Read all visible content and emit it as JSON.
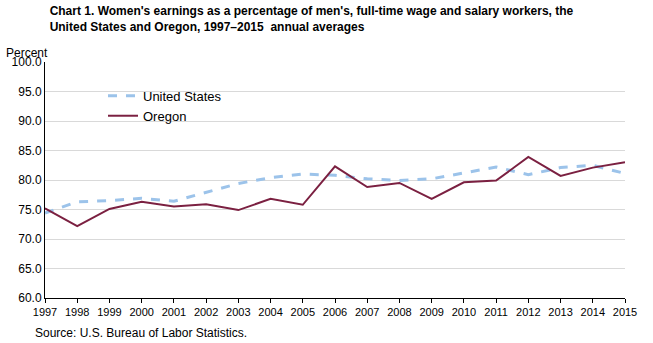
{
  "chart_data": {
    "type": "line",
    "title": "Chart 1. Women's earnings as a percentage of men's, full-time wage and salary workers, the\nUnited States and Oregon, 1997–2015  annual averages",
    "ylabel": "Percent",
    "annotations": [
      "Source: U.S. Bureau of Labor Statistics."
    ],
    "x": [
      1997,
      1998,
      1999,
      2000,
      2001,
      2002,
      2003,
      2004,
      2005,
      2006,
      2007,
      2008,
      2009,
      2010,
      2011,
      2012,
      2013,
      2014,
      2015
    ],
    "xlim": [
      1997,
      2015
    ],
    "xticks": [
      1997,
      1998,
      1999,
      2000,
      2001,
      2002,
      2003,
      2004,
      2005,
      2006,
      2007,
      2008,
      2009,
      2010,
      2011,
      2012,
      2013,
      2014,
      2015
    ],
    "ylim": [
      60,
      100
    ],
    "yticks": [
      {
        "value": 60,
        "label": "60.0"
      },
      {
        "value": 65,
        "label": "65.0"
      },
      {
        "value": 70,
        "label": "70.0"
      },
      {
        "value": 75,
        "label": "75.0"
      },
      {
        "value": 80,
        "label": "80.0"
      },
      {
        "value": 85,
        "label": "85.0"
      },
      {
        "value": 90,
        "label": "90.0"
      },
      {
        "value": 95,
        "label": "95.0"
      },
      {
        "value": 100,
        "label": "100.0"
      }
    ],
    "grid": true,
    "legend": "upper left",
    "series": [
      {
        "name": "United States",
        "color": "#9cc3ea",
        "line_style": "dashed",
        "values": [
          74.4,
          76.3,
          76.5,
          76.9,
          76.4,
          77.9,
          79.4,
          80.4,
          81.0,
          80.8,
          80.2,
          79.9,
          80.2,
          81.2,
          82.2,
          80.9,
          82.1,
          82.5,
          81.1
        ]
      },
      {
        "name": "Oregon",
        "color": "#7b2041",
        "line_style": "solid",
        "values": [
          75.2,
          72.2,
          75.1,
          76.3,
          75.5,
          75.9,
          74.9,
          76.8,
          75.8,
          82.3,
          78.8,
          79.5,
          76.8,
          79.6,
          79.9,
          83.9,
          80.7,
          82.1,
          83.0
        ]
      }
    ]
  }
}
